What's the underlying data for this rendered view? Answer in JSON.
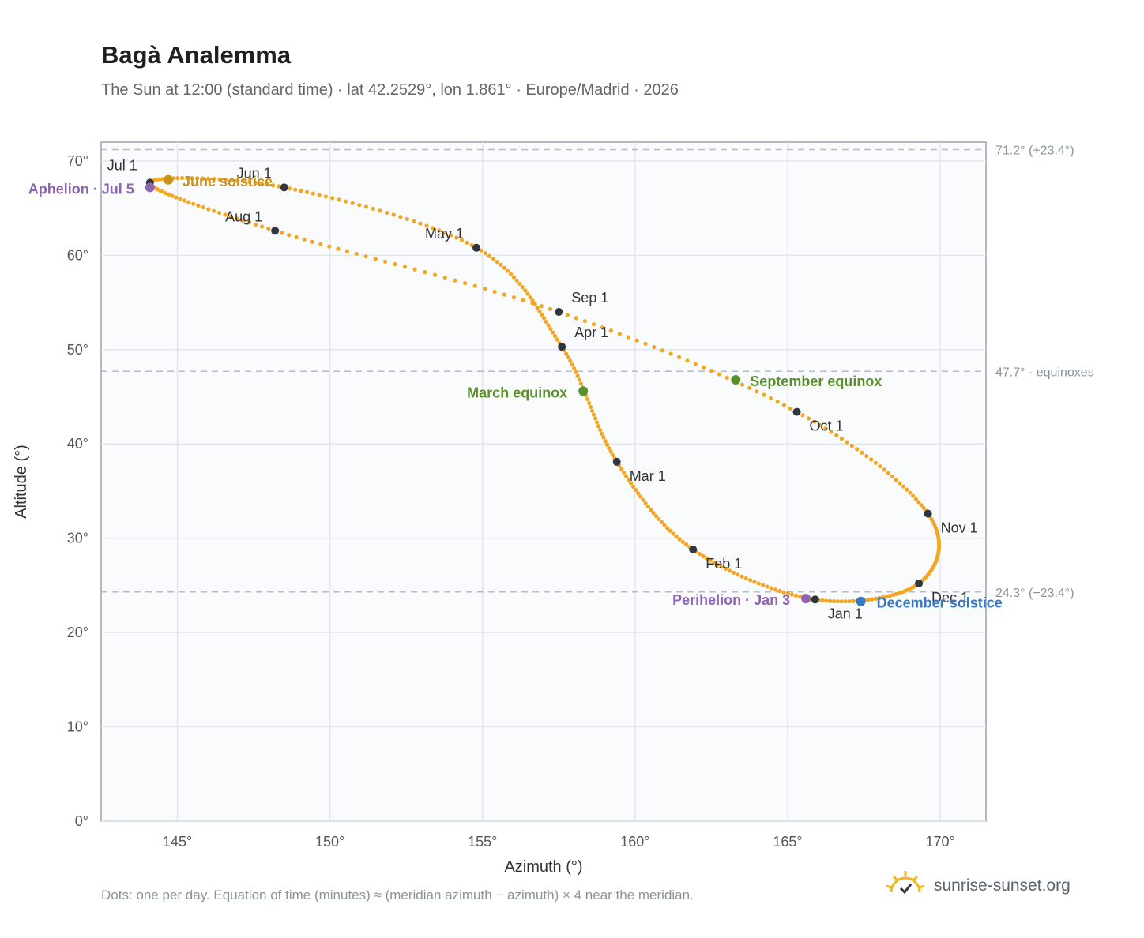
{
  "chart_data": {
    "type": "scatter",
    "title": "Bagà Analemma",
    "subtitle": "The Sun at 12:00 (standard time) · lat 42.2529°, lon 1.861° · Europe/Madrid · 2026",
    "xlabel": "Azimuth (°)",
    "ylabel": "Altitude (°)",
    "xlim": [
      142.5,
      171.5
    ],
    "ylim": [
      0,
      72
    ],
    "x_ticks": [
      145,
      150,
      155,
      160,
      165,
      170
    ],
    "x_tick_labels": [
      "145°",
      "150°",
      "155°",
      "160°",
      "165°",
      "170°"
    ],
    "y_ticks": [
      0,
      10,
      20,
      30,
      40,
      50,
      60,
      70
    ],
    "y_tick_labels": [
      "0°",
      "10°",
      "20°",
      "30°",
      "40°",
      "50°",
      "60°",
      "70°"
    ],
    "grid": true,
    "reference_lines": [
      {
        "y": 71.2,
        "label": "71.2° (+23.4°)"
      },
      {
        "y": 47.7,
        "label": "47.7° · equinoxes"
      },
      {
        "y": 24.3,
        "label": "24.3° (−23.4°)"
      }
    ],
    "series": [
      {
        "points": [
          {
            "label": "Jan 1",
            "x": 165.9,
            "y": 23.5
          },
          {
            "label": "Feb 1",
            "x": 161.9,
            "y": 28.8
          },
          {
            "label": "Mar 1",
            "x": 159.4,
            "y": 38.1
          },
          {
            "label": "Apr 1",
            "x": 157.6,
            "y": 50.3
          },
          {
            "label": "May 1",
            "x": 154.8,
            "y": 60.8
          },
          {
            "label": "Jun 1",
            "x": 148.5,
            "y": 67.2
          },
          {
            "label": "Jul 1",
            "x": 144.1,
            "y": 67.7
          },
          {
            "label": "Aug 1",
            "x": 148.2,
            "y": 62.6
          },
          {
            "label": "Sep 1",
            "x": 157.5,
            "y": 54.0
          },
          {
            "label": "Oct 1",
            "x": 165.3,
            "y": 43.4
          },
          {
            "label": "Nov 1",
            "x": 169.6,
            "y": 32.6
          },
          {
            "label": "Dec 1",
            "x": 169.3,
            "y": 25.2
          }
        ]
      }
    ],
    "events": [
      {
        "label": "June solstice",
        "x": 144.7,
        "y": 68.0,
        "color": "#c8921a"
      },
      {
        "label": "Aphelion · Jul 5",
        "x": 144.1,
        "y": 67.2,
        "color": "#8e64b0"
      },
      {
        "label": "March equinox",
        "x": 158.3,
        "y": 45.6,
        "color": "#5a8f2e"
      },
      {
        "label": "September equinox",
        "x": 163.3,
        "y": 46.8,
        "color": "#5a8f2e"
      },
      {
        "label": "Perihelion · Jan 3",
        "x": 165.6,
        "y": 23.6,
        "color": "#8e64b0"
      },
      {
        "label": "December solstice",
        "x": 167.4,
        "y": 23.3,
        "color": "#3a78c2"
      }
    ],
    "curve_color": "#f2a622",
    "month_marker_color": "#2f3640"
  },
  "footnote": "Dots: one per day. Equation of time (minutes) ≈ (meridian azimuth − azimuth) × 4 near the meridian.",
  "brand": {
    "text": "sunrise-sunset.org",
    "icon": "sun-logo-icon"
  }
}
